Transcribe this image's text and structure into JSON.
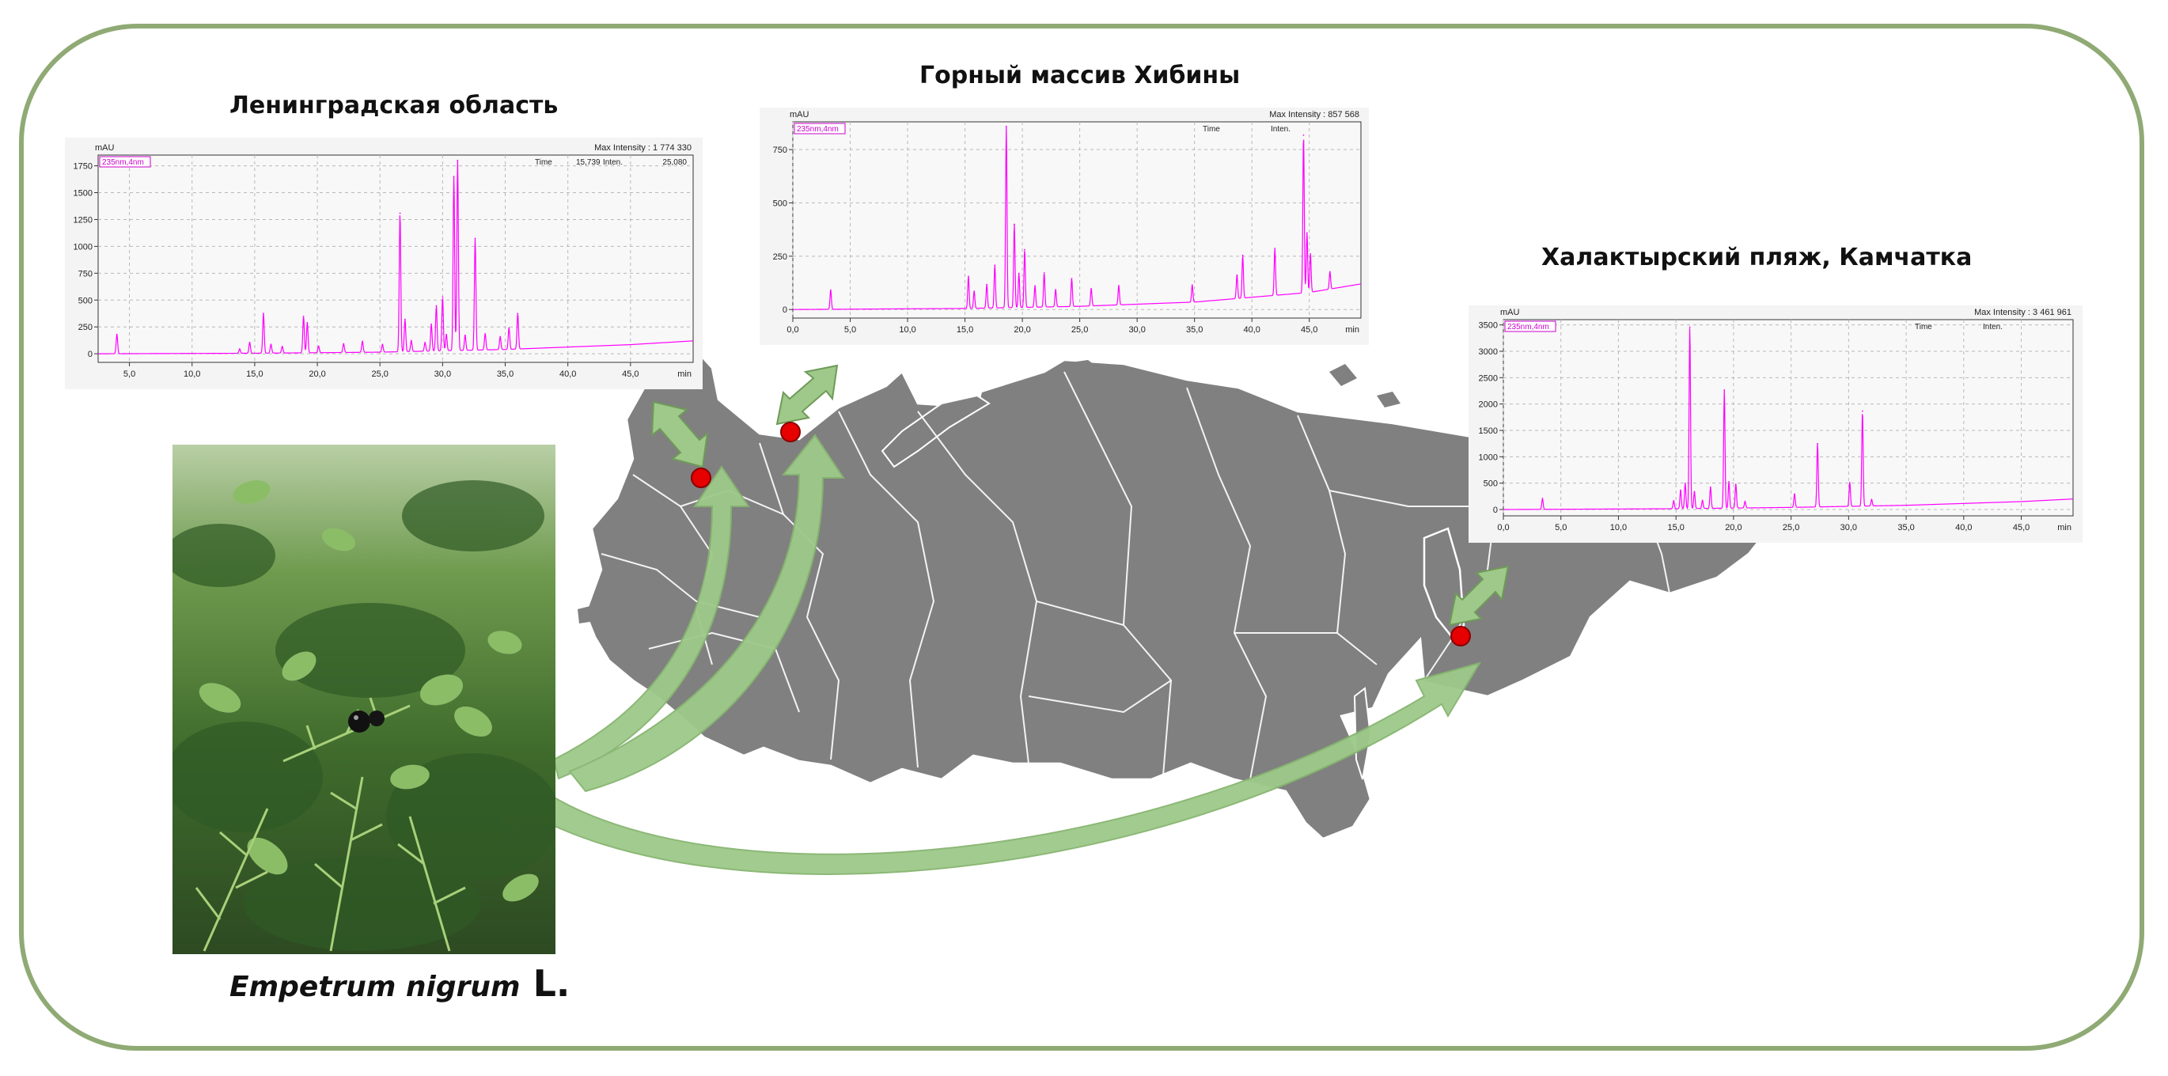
{
  "species": {
    "italic": "Empetrum nigrum",
    "author": " L."
  },
  "colors": {
    "frame": "#8faa74",
    "trace": "#ff00ff",
    "map": "#808080",
    "marker": "#e60000",
    "arrow": "#9ec98a"
  },
  "chart_data": [
    {
      "type": "line",
      "title": "Ленинградская область",
      "ylabel": "mAU",
      "xunit": "min",
      "channel": "235nm,4nm",
      "max_intensity": "Max Intensity : 1 774 330",
      "readout": {
        "time_label": "Time",
        "time_value": "15,739",
        "inten_label": "Inten.",
        "inten_value": "25,080"
      },
      "xlim": [
        2.5,
        50
      ],
      "ylim": [
        -80,
        1850
      ],
      "x_ticks": [
        "5,0",
        "10,0",
        "15,0",
        "20,0",
        "25,0",
        "30,0",
        "35,0",
        "40,0",
        "45,0"
      ],
      "x_tick_values": [
        5,
        10,
        15,
        20,
        25,
        30,
        35,
        40,
        45
      ],
      "y_ticks": [
        "0",
        "250",
        "500",
        "750",
        "1000",
        "1250",
        "1500",
        "1750"
      ],
      "y_tick_values": [
        0,
        250,
        500,
        750,
        1000,
        1250,
        1500,
        1750
      ],
      "baseline": [
        [
          2.5,
          0
        ],
        [
          15,
          5
        ],
        [
          25,
          15
        ],
        [
          35,
          40
        ],
        [
          45,
          85
        ],
        [
          50,
          120
        ]
      ],
      "peaks": [
        [
          4.0,
          180
        ],
        [
          13.8,
          40
        ],
        [
          14.6,
          100
        ],
        [
          15.7,
          370
        ],
        [
          16.3,
          80
        ],
        [
          17.2,
          60
        ],
        [
          18.9,
          340
        ],
        [
          19.2,
          280
        ],
        [
          20.1,
          60
        ],
        [
          22.1,
          80
        ],
        [
          23.6,
          100
        ],
        [
          25.2,
          70
        ],
        [
          26.6,
          1290
        ],
        [
          27.0,
          300
        ],
        [
          27.5,
          100
        ],
        [
          28.6,
          80
        ],
        [
          29.1,
          250
        ],
        [
          29.5,
          420
        ],
        [
          30.0,
          500
        ],
        [
          30.3,
          150
        ],
        [
          30.9,
          1620
        ],
        [
          31.2,
          1770
        ],
        [
          31.8,
          140
        ],
        [
          32.6,
          1040
        ],
        [
          33.4,
          150
        ],
        [
          34.6,
          120
        ],
        [
          35.3,
          200
        ],
        [
          36.0,
          330
        ]
      ]
    },
    {
      "type": "line",
      "title": "Горный массив Хибины",
      "ylabel": "mAU",
      "xunit": "min",
      "channel": "235nm,4nm",
      "max_intensity": "Max Intensity : 857 568",
      "readout": {
        "time_label": "Time",
        "time_value": "",
        "inten_label": "Inten.",
        "inten_value": ""
      },
      "xlim": [
        0,
        49.5
      ],
      "ylim": [
        -40,
        880
      ],
      "x_ticks": [
        "0,0",
        "5,0",
        "10,0",
        "15,0",
        "20,0",
        "25,0",
        "30,0",
        "35,0",
        "40,0",
        "45,0"
      ],
      "x_tick_values": [
        0,
        5,
        10,
        15,
        20,
        25,
        30,
        35,
        40,
        45
      ],
      "y_ticks": [
        "0",
        "250",
        "500",
        "750"
      ],
      "y_tick_values": [
        0,
        250,
        500,
        750
      ],
      "baseline": [
        [
          0,
          0
        ],
        [
          15,
          5
        ],
        [
          25,
          15
        ],
        [
          35,
          35
        ],
        [
          45,
          80
        ],
        [
          49.5,
          120
        ]
      ],
      "peaks": [
        [
          3.3,
          90
        ],
        [
          15.3,
          150
        ],
        [
          15.8,
          80
        ],
        [
          16.9,
          110
        ],
        [
          17.6,
          200
        ],
        [
          18.6,
          850
        ],
        [
          19.3,
          390
        ],
        [
          19.7,
          160
        ],
        [
          20.2,
          270
        ],
        [
          21.1,
          100
        ],
        [
          21.9,
          160
        ],
        [
          22.9,
          80
        ],
        [
          24.3,
          130
        ],
        [
          26.0,
          80
        ],
        [
          28.4,
          90
        ],
        [
          34.8,
          80
        ],
        [
          38.7,
          110
        ],
        [
          39.2,
          200
        ],
        [
          42.0,
          220
        ],
        [
          44.5,
          740
        ],
        [
          44.8,
          280
        ],
        [
          45.1,
          180
        ],
        [
          46.8,
          80
        ]
      ]
    },
    {
      "type": "line",
      "title": "Халактырский пляж, Камчатка",
      "ylabel": "mAU",
      "xunit": "min",
      "channel": "235nm,4nm",
      "max_intensity": "Max Intensity : 3 461 961",
      "readout": {
        "time_label": "Time",
        "time_value": "",
        "inten_label": "Inten.",
        "inten_value": ""
      },
      "xlim": [
        0,
        49.5
      ],
      "ylim": [
        -120,
        3600
      ],
      "x_ticks": [
        "0,0",
        "5,0",
        "10,0",
        "15,0",
        "20,0",
        "25,0",
        "30,0",
        "35,0",
        "40,0",
        "45,0"
      ],
      "x_tick_values": [
        0,
        5,
        10,
        15,
        20,
        25,
        30,
        35,
        40,
        45
      ],
      "y_ticks": [
        "0",
        "500",
        "1000",
        "1500",
        "2000",
        "2500",
        "3000",
        "3500"
      ],
      "y_tick_values": [
        0,
        500,
        1000,
        1500,
        2000,
        2500,
        3000,
        3500
      ],
      "baseline": [
        [
          0,
          0
        ],
        [
          15,
          15
        ],
        [
          25,
          40
        ],
        [
          35,
          80
        ],
        [
          45,
          150
        ],
        [
          49.5,
          200
        ]
      ],
      "peaks": [
        [
          3.4,
          200
        ],
        [
          14.8,
          150
        ],
        [
          15.4,
          350
        ],
        [
          15.8,
          480
        ],
        [
          16.2,
          3440
        ],
        [
          16.6,
          320
        ],
        [
          17.3,
          150
        ],
        [
          18.0,
          400
        ],
        [
          19.2,
          2240
        ],
        [
          19.6,
          500
        ],
        [
          20.2,
          450
        ],
        [
          21.0,
          120
        ],
        [
          25.3,
          250
        ],
        [
          27.3,
          1200
        ],
        [
          30.1,
          450
        ],
        [
          31.2,
          1800
        ],
        [
          32.0,
          120
        ]
      ]
    }
  ]
}
